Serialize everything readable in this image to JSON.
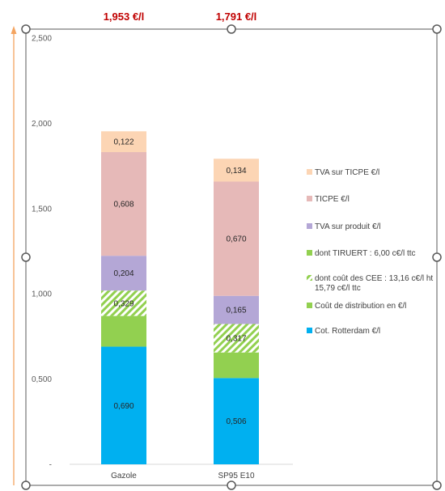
{
  "chart_data": {
    "type": "bar",
    "stacked": true,
    "categories": [
      "Gazole",
      "SP95 E10"
    ],
    "totals": [
      "1,953 €/l",
      "1,791 €/l"
    ],
    "ylim": [
      0,
      2.5
    ],
    "yticks": [
      "-",
      "0,500",
      "1,000",
      "1,500",
      "2,000",
      "2,500"
    ],
    "grid": false,
    "legend_position": "right",
    "series": [
      {
        "name": "Cot. Rotterdam €/l",
        "values": [
          0.69,
          0.506
        ],
        "labels": [
          "0,690",
          "0,506"
        ],
        "color": "#00b0f0"
      },
      {
        "name": "Coût de distribution en €/l",
        "values": [
          0.18,
          0.15
        ],
        "labels": [
          "",
          ""
        ],
        "color": "#92d050"
      },
      {
        "name": "dont coût des CEE : 13,16 c€/l ht 15,79 c€/l ttc",
        "values": [
          0.149,
          0.167
        ],
        "labels": [
          "0,329",
          "0,317"
        ],
        "color": "#92d050",
        "hatched": true
      },
      {
        "name": "TVA sur produit €/l",
        "values": [
          0.204,
          0.165
        ],
        "labels": [
          "0,204",
          "0,165"
        ],
        "color": "#b4a7d6"
      },
      {
        "name": "TICPE €/l",
        "values": [
          0.608,
          0.67
        ],
        "labels": [
          "0,608",
          "0,670"
        ],
        "color": "#e6b9b8"
      },
      {
        "name": "TVA sur TICPE €/l",
        "values": [
          0.122,
          0.134
        ],
        "labels": [
          "0,122",
          "0,134"
        ],
        "color": "#fcd5b4"
      }
    ],
    "legend": [
      {
        "name": "TVA sur TICPE €/l",
        "color": "#fcd5b4"
      },
      {
        "name": "TICPE €/l",
        "color": "#e6b9b8"
      },
      {
        "name": "TVA sur produit €/l",
        "color": "#b4a7d6"
      },
      {
        "name": "dont TIRUERT : 6,00 c€/l ttc",
        "color": "#92d050"
      },
      {
        "name": "dont coût des CEE : 13,16 c€/l ht 15,79 c€/l ttc",
        "color": "#92d050",
        "hatched": true
      },
      {
        "name": "Coût de distribution en €/l",
        "color": "#92d050"
      },
      {
        "name": "Cot. Rotterdam €/l",
        "color": "#00b0f0"
      }
    ]
  }
}
